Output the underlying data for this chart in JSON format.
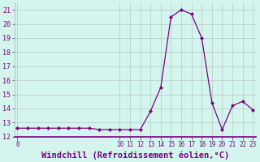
{
  "x": [
    0,
    1,
    2,
    3,
    4,
    5,
    6,
    7,
    8,
    9,
    10,
    11,
    12,
    13,
    14,
    15,
    16,
    17,
    18,
    19,
    20,
    21,
    22,
    23
  ],
  "y": [
    12.6,
    12.6,
    12.6,
    12.6,
    12.6,
    12.6,
    12.6,
    12.6,
    12.5,
    12.5,
    12.5,
    12.5,
    12.5,
    13.8,
    15.5,
    20.5,
    21.0,
    20.7,
    19.0,
    14.4,
    12.5,
    14.2,
    14.5,
    13.9
  ],
  "line_color": "#7b0080",
  "marker_color": "#7b0080",
  "bg_color": "#d4f5ee",
  "grid_color": "#b8c8c4",
  "xlabel": "Windchill (Refroidissement éolien,°C)",
  "xlabel_color": "#7b0080",
  "tick_color": "#7b0080",
  "ylim": [
    12,
    21.5
  ],
  "yticks": [
    12,
    13,
    14,
    15,
    16,
    17,
    18,
    19,
    20,
    21
  ],
  "xlim": [
    -0.3,
    23.3
  ],
  "xtick_show": [
    0,
    10,
    11,
    12,
    13,
    14,
    15,
    16,
    17,
    18,
    19,
    20,
    21,
    22,
    23
  ],
  "tick_fontsize": 5.5,
  "xlabel_fontsize": 7.5,
  "ytick_fontsize": 6
}
